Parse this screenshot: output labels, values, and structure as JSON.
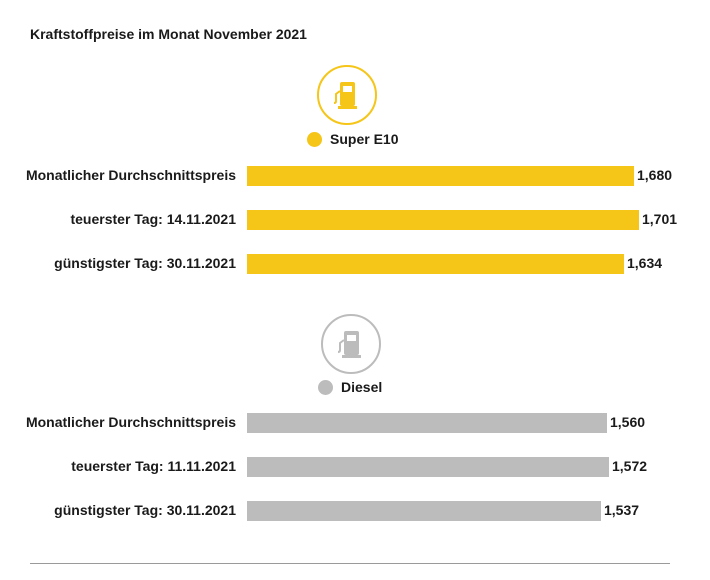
{
  "title": "Kraftstoffpreise im Monat November 2021",
  "colors": {
    "e10": "#f5c518",
    "diesel": "#bcbcbc",
    "e10_icon": "#f5c518",
    "diesel_icon": "#bcbcbc"
  },
  "chart_data": {
    "type": "bar",
    "orientation": "horizontal",
    "xlim": [
      0,
      1.701
    ],
    "groups": [
      {
        "name": "Super E10",
        "icon": "fuel-pump-icon",
        "categories": [
          "Monatlicher Durchschnittspreis",
          "teuerster Tag: 14.11.2021",
          "günstigster Tag: 30.11.2021"
        ],
        "values": [
          1.68,
          1.701,
          1.634
        ],
        "value_labels": [
          "1,680",
          "1,701",
          "1,634"
        ]
      },
      {
        "name": "Diesel",
        "icon": "fuel-pump-icon",
        "categories": [
          "Monatlicher Durchschnittspreis",
          "teuerster Tag: 11.11.2021",
          "günstigster Tag: 30.11.2021"
        ],
        "values": [
          1.56,
          1.572,
          1.537
        ],
        "value_labels": [
          "1,560",
          "1,572",
          "1,537"
        ]
      }
    ]
  }
}
